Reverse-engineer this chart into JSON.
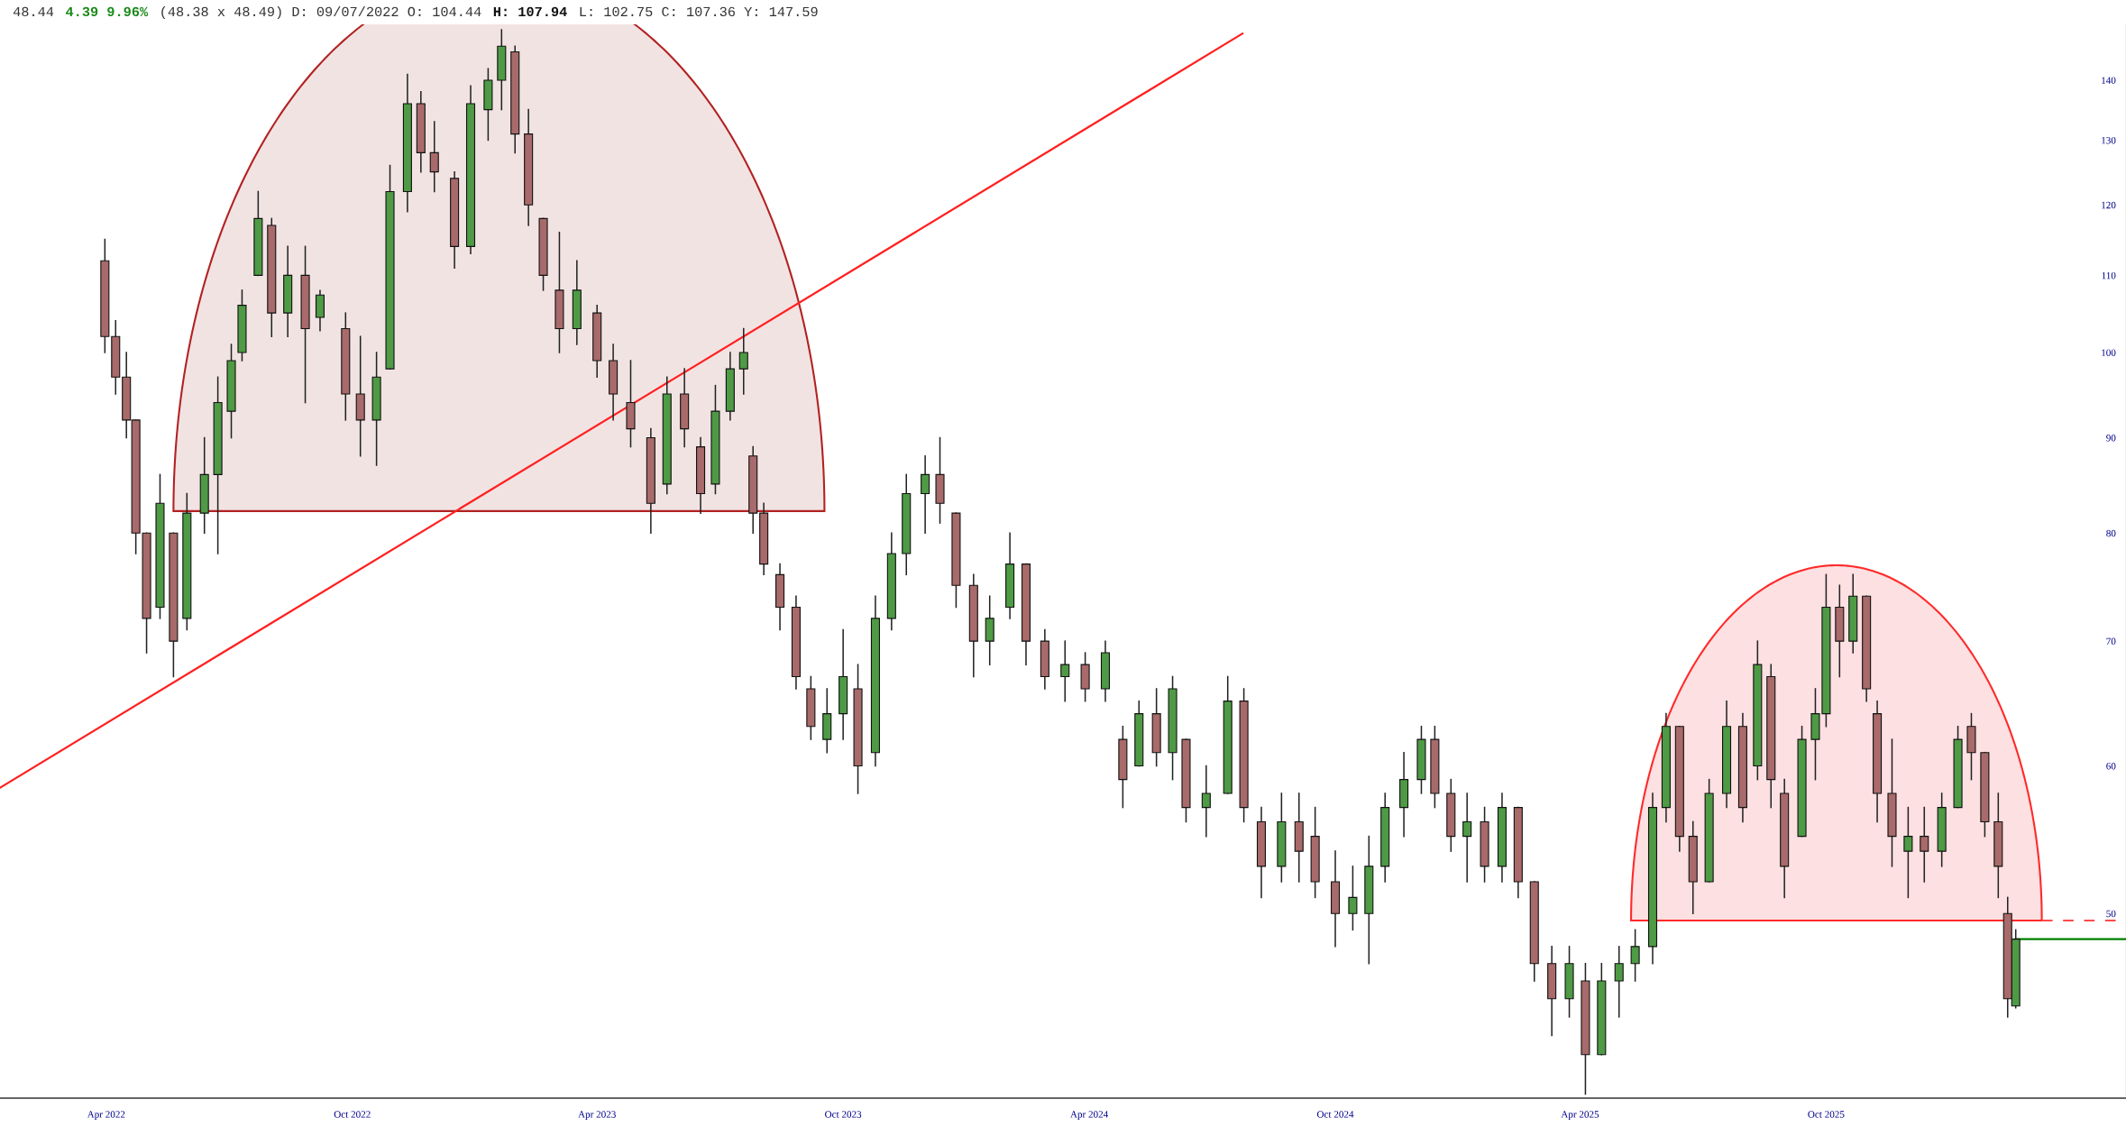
{
  "chart_data": {
    "type": "candlestick",
    "annotations": [
      "48.44",
      "4.39 9.96%",
      "(48.38 x 48.49) D: 09/07/2022 O: 104.44",
      "H: 107.94",
      "L: 102.75 C: 107.36 Y: 147.59"
    ],
    "log": true,
    "grid": false,
    "legend": false,
    "xlim": [
      "2022-01-12",
      "2026-05-12"
    ],
    "xticks": [
      {
        "value": "2022-04-01",
        "label": "Apr 2022"
      },
      {
        "value": "2022-10-01",
        "label": "Oct 2022"
      },
      {
        "value": "2023-04-01",
        "label": "Apr 2023"
      },
      {
        "value": "2023-10-01",
        "label": "Oct 2023"
      },
      {
        "value": "2024-04-01",
        "label": "Apr 2024"
      },
      {
        "value": "2024-10-01",
        "label": "Oct 2024"
      },
      {
        "value": "2025-04-01",
        "label": "Apr 2025"
      },
      {
        "value": "2025-10-01",
        "label": "Oct 2025"
      }
    ],
    "ylim": [
      39.8,
      150
    ],
    "yticks": [
      50,
      60,
      70,
      80,
      90,
      100,
      110,
      120,
      130,
      140
    ],
    "series": [
      {
        "color": "#4e9a45",
        "x": [
          "2022-05-11",
          "2022-05-31",
          "2022-06-13",
          "2022-06-23",
          "2022-07-03",
          "2022-07-11",
          "2022-07-23",
          "2022-08-14",
          "2022-09-07",
          "2022-10-19",
          "2022-10-29",
          "2022-11-11",
          "2022-12-28",
          "2023-01-10",
          "2023-01-20",
          "2023-03-17",
          "2023-05-23",
          "2023-06-28",
          "2023-07-09",
          "2023-07-19",
          "2023-09-19",
          "2023-10-01",
          "2023-10-25",
          "2023-11-06",
          "2023-11-17",
          "2023-12-01",
          "2024-01-18",
          "2024-02-02",
          "2024-03-14",
          "2024-04-13",
          "2024-05-08",
          "2024-06-02",
          "2024-06-27",
          "2024-07-13",
          "2024-08-22",
          "2024-10-14",
          "2024-10-26",
          "2024-11-07",
          "2024-11-21",
          "2024-12-04",
          "2025-01-07",
          "2025-02-02",
          "2025-03-24",
          "2025-04-17",
          "2025-04-30",
          "2025-05-12",
          "2025-05-25",
          "2025-06-04",
          "2025-07-06",
          "2025-07-19",
          "2025-08-11",
          "2025-09-13",
          "2025-09-23",
          "2025-10-01",
          "2025-10-21",
          "2025-12-01",
          "2025-12-26",
          "2026-01-07",
          "2026-02-19"
        ],
        "ohlc": [
          [
            73,
            86,
            72,
            83
          ],
          [
            72,
            84,
            71,
            82
          ],
          [
            82,
            90,
            80,
            86
          ],
          [
            86,
            97,
            78,
            94
          ],
          [
            93,
            101,
            90,
            99
          ],
          [
            100,
            108,
            99,
            106
          ],
          [
            110,
            122,
            110,
            118
          ],
          [
            105,
            114,
            102,
            110
          ],
          [
            104.44,
            107.94,
            102.75,
            107.36
          ],
          [
            92,
            100,
            87,
            97
          ],
          [
            98,
            126,
            98,
            122
          ],
          [
            122,
            141,
            119,
            136
          ],
          [
            114,
            139,
            113,
            136
          ],
          [
            135,
            142,
            130,
            140
          ],
          [
            140,
            149,
            135,
            146
          ],
          [
            103,
            112,
            101,
            108
          ],
          [
            85,
            97,
            84,
            95
          ],
          [
            85,
            96,
            84,
            93
          ],
          [
            93,
            100,
            92,
            98
          ],
          [
            98,
            103,
            95,
            100
          ],
          [
            62,
            66,
            61,
            64
          ],
          [
            64,
            71,
            62,
            67
          ],
          [
            61,
            74,
            60,
            72
          ],
          [
            72,
            80,
            71,
            78
          ],
          [
            78,
            86,
            76,
            84
          ],
          [
            84,
            88,
            80,
            86
          ],
          [
            70,
            74,
            68,
            72
          ],
          [
            73,
            80,
            72,
            77
          ],
          [
            67,
            70,
            65,
            68
          ],
          [
            66,
            70,
            65,
            69
          ],
          [
            60,
            65,
            60,
            64
          ],
          [
            61,
            67,
            59,
            66
          ],
          [
            57,
            60,
            55,
            58
          ],
          [
            58,
            67,
            58,
            65
          ],
          [
            53,
            58,
            52,
            56
          ],
          [
            50,
            53,
            49,
            51
          ],
          [
            50,
            55,
            47,
            53
          ],
          [
            53,
            58,
            52,
            57
          ],
          [
            57,
            61,
            55,
            59
          ],
          [
            59,
            63,
            58,
            62
          ],
          [
            55,
            58,
            52,
            56
          ],
          [
            53,
            58,
            52,
            57
          ],
          [
            45,
            48,
            44,
            47
          ],
          [
            42,
            47,
            42,
            46
          ],
          [
            46,
            48,
            44,
            47
          ],
          [
            47,
            49,
            46,
            48
          ],
          [
            48,
            58,
            47,
            57
          ],
          [
            57,
            64,
            56,
            63
          ],
          [
            52,
            59,
            52,
            58
          ],
          [
            58,
            65,
            57,
            63
          ],
          [
            60,
            70,
            59,
            68
          ],
          [
            55,
            63,
            55,
            62
          ],
          [
            62,
            66,
            59,
            64
          ],
          [
            64,
            76,
            63,
            73
          ],
          [
            70,
            76,
            69,
            74
          ],
          [
            54,
            57,
            51,
            55
          ],
          [
            54,
            58,
            53,
            57
          ],
          [
            57,
            63,
            57,
            62
          ],
          [
            44.6,
            49,
            44.5,
            48.44
          ]
        ]
      },
      {
        "color": "#a86a6a",
        "x": [
          "2022-03-31",
          "2022-04-08",
          "2022-04-16",
          "2022-04-23",
          "2022-05-01",
          "2022-05-21",
          "2022-08-02",
          "2022-08-27",
          "2022-09-26",
          "2022-10-07",
          "2022-11-21",
          "2022-12-01",
          "2022-12-16",
          "2023-01-30",
          "2023-02-09",
          "2023-02-20",
          "2023-03-04",
          "2023-04-01",
          "2023-04-13",
          "2023-04-26",
          "2023-05-11",
          "2023-06-05",
          "2023-06-17",
          "2023-07-26",
          "2023-08-03",
          "2023-08-15",
          "2023-08-27",
          "2023-09-07",
          "2023-10-12",
          "2023-12-12",
          "2023-12-24",
          "2024-01-06",
          "2024-02-14",
          "2024-02-28",
          "2024-03-29",
          "2024-04-26",
          "2024-05-21",
          "2024-06-12",
          "2024-07-25",
          "2024-08-07",
          "2024-09-04",
          "2024-09-16",
          "2024-10-01",
          "2024-12-14",
          "2024-12-26",
          "2025-01-20",
          "2025-02-14",
          "2025-02-26",
          "2025-03-11",
          "2025-04-05",
          "2025-06-14",
          "2025-06-24",
          "2025-07-31",
          "2025-08-21",
          "2025-08-31",
          "2025-10-11",
          "2025-10-31",
          "2025-11-08",
          "2025-11-19",
          "2025-12-13",
          "2026-01-17",
          "2026-01-27",
          "2026-02-06",
          "2026-02-13"
        ],
        "ohlc": [
          [
            112,
            115,
            100,
            102
          ],
          [
            102,
            104,
            95,
            97
          ],
          [
            97,
            100,
            90,
            92
          ],
          [
            92,
            92,
            78,
            80
          ],
          [
            80,
            80,
            69,
            72
          ],
          [
            80,
            80,
            67,
            70
          ],
          [
            117,
            118,
            102,
            105
          ],
          [
            110,
            114,
            94,
            103
          ],
          [
            103,
            105,
            92,
            95
          ],
          [
            95,
            102,
            88,
            92
          ],
          [
            136,
            138,
            125,
            128
          ],
          [
            128,
            133,
            122,
            125
          ],
          [
            124,
            125,
            111,
            114
          ],
          [
            145,
            146,
            128,
            131
          ],
          [
            131,
            135,
            117,
            120
          ],
          [
            118,
            118,
            108,
            110
          ],
          [
            108,
            116,
            100,
            103
          ],
          [
            105,
            106,
            97,
            99
          ],
          [
            99,
            101,
            92,
            95
          ],
          [
            94,
            99,
            89,
            91
          ],
          [
            90,
            91,
            80,
            83
          ],
          [
            95,
            98,
            89,
            91
          ],
          [
            89,
            90,
            82,
            84
          ],
          [
            88,
            89,
            80,
            82
          ],
          [
            82,
            83,
            76,
            77
          ],
          [
            76,
            77,
            71,
            73
          ],
          [
            73,
            74,
            66,
            67
          ],
          [
            66,
            67,
            62,
            63
          ],
          [
            66,
            68,
            58,
            60
          ],
          [
            86,
            90,
            81,
            83
          ],
          [
            82,
            82,
            73,
            75
          ],
          [
            75,
            76,
            67,
            70
          ],
          [
            77,
            77,
            68,
            70
          ],
          [
            70,
            71,
            66,
            67
          ],
          [
            68,
            69,
            65,
            66
          ],
          [
            62,
            63,
            57,
            59
          ],
          [
            64,
            66,
            60,
            61
          ],
          [
            62,
            62,
            56,
            57
          ],
          [
            65,
            66,
            56,
            57
          ],
          [
            56,
            57,
            51,
            53
          ],
          [
            56,
            58,
            52,
            54
          ],
          [
            55,
            57,
            51,
            52
          ],
          [
            52,
            54,
            48,
            50
          ],
          [
            62,
            63,
            57,
            58
          ],
          [
            58,
            59,
            54,
            55
          ],
          [
            56,
            57,
            52,
            53
          ],
          [
            57,
            57,
            51,
            52
          ],
          [
            52,
            52,
            46,
            47
          ],
          [
            47,
            48,
            43,
            45
          ],
          [
            46,
            47,
            40,
            42
          ],
          [
            63,
            63,
            54,
            55
          ],
          [
            55,
            56,
            50,
            52
          ],
          [
            63,
            64,
            56,
            57
          ],
          [
            67,
            68,
            57,
            59
          ],
          [
            58,
            59,
            51,
            53
          ],
          [
            73,
            75,
            67,
            70
          ],
          [
            74,
            74,
            65,
            66
          ],
          [
            64,
            65,
            56,
            58
          ],
          [
            58,
            62,
            53,
            55
          ],
          [
            55,
            57,
            52,
            54
          ],
          [
            63,
            64,
            59,
            61
          ],
          [
            61,
            61,
            55,
            56
          ],
          [
            56,
            58,
            51,
            53
          ],
          [
            50,
            51,
            44,
            45
          ]
        ]
      },
      {
        "type": "line",
        "color": "#ff2020",
        "x": [
          "2022-01-12",
          "2024-07-24"
        ],
        "values": [
          58.4,
          148.3
        ]
      },
      {
        "type": "line",
        "color": "#008000",
        "x": [
          "2026-02-19",
          "2026-05-12"
        ],
        "values": [
          48.44,
          48.44
        ]
      }
    ]
  }
}
